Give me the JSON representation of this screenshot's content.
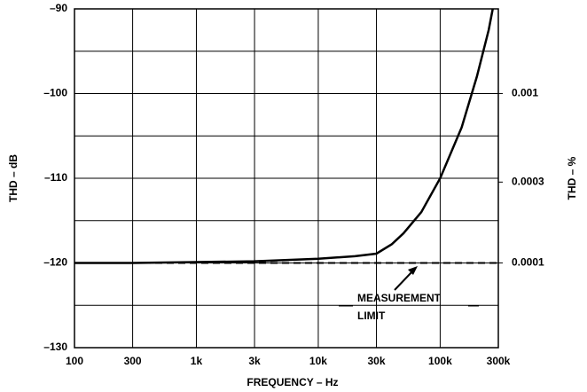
{
  "chart_data": {
    "type": "line",
    "xlabel": "FREQUENCY – Hz",
    "ylabel": "THD – dB",
    "y2label": "THD – %",
    "xscale": "log",
    "y2scale": "log",
    "xlim": [
      100,
      300000
    ],
    "ylim": [
      -130,
      -90
    ],
    "y2lim": [
      3.16e-05,
      0.00316
    ],
    "xticks": [
      100,
      300,
      {
        "value": 1000,
        "label": "1k"
      },
      {
        "value": 3000,
        "label": "3k"
      },
      {
        "value": 10000,
        "label": "10k"
      },
      {
        "value": 30000,
        "label": "30k"
      },
      {
        "value": 100000,
        "label": "100k"
      },
      {
        "value": 300000,
        "label": "300k"
      }
    ],
    "yticks": [
      {
        "value": -130,
        "label": "–130"
      },
      {
        "value": -120,
        "label": "–120"
      },
      {
        "value": -110,
        "label": "–110"
      },
      {
        "value": -100,
        "label": "–100"
      },
      {
        "value": -90,
        "label": "–90"
      }
    ],
    "y_minor_grid": [
      -125,
      -115,
      -105,
      -95
    ],
    "y2ticks": [
      0.0001,
      0.0003,
      0.001
    ],
    "grid": true,
    "annotation": [
      "MEASUREMENT",
      "LIMIT"
    ],
    "series": [
      {
        "name": "THD",
        "color": "#000000",
        "dash": false,
        "x": [
          100,
          300,
          1000,
          3000,
          10000,
          20000,
          30000,
          40000,
          50000,
          70000,
          100000,
          150000,
          200000,
          250000,
          270000
        ],
        "values": [
          -120,
          -120,
          -119.9,
          -119.8,
          -119.5,
          -119.2,
          -118.9,
          -117.8,
          -116.5,
          -114,
          -110,
          -104,
          -98,
          -92.5,
          -90
        ]
      },
      {
        "name": "Measurement limit",
        "color": "#000000",
        "dash": true,
        "x": [
          100,
          300000
        ],
        "values": [
          -120,
          -120
        ]
      }
    ]
  }
}
